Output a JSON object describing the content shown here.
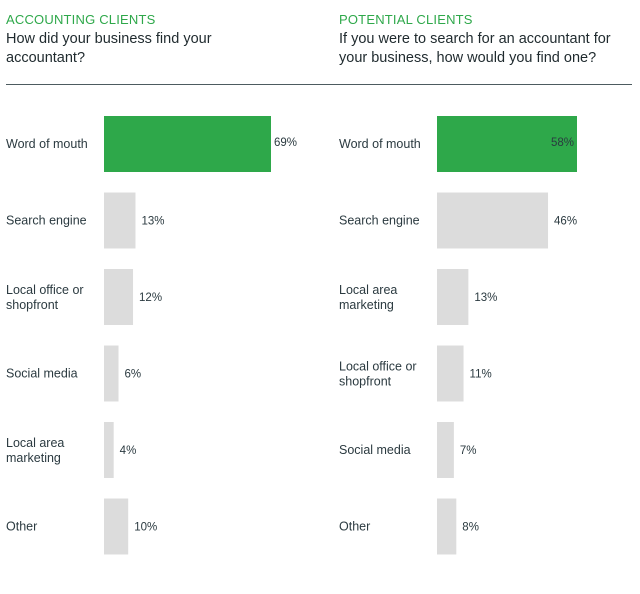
{
  "chart_data": [
    {
      "type": "bar",
      "orientation": "horizontal",
      "kicker": "ACCOUNTING CLIENTS",
      "title": "How did your business find your accountant?",
      "categories": [
        "Word of mouth",
        "Search engine",
        "Local office or shopfront",
        "Social media",
        "Local area marketing",
        "Other"
      ],
      "category_lines": [
        [
          "Word of mouth"
        ],
        [
          "Search engine"
        ],
        [
          "Local office or",
          "shopfront"
        ],
        [
          "Social media"
        ],
        [
          "Local area",
          "marketing"
        ],
        [
          "Other"
        ]
      ],
      "values": [
        69,
        13,
        12,
        6,
        4,
        10
      ],
      "value_labels": [
        "69%",
        "13%",
        "12%",
        "6%",
        "4%",
        "10%"
      ],
      "highlight_index": 0,
      "unit": "%"
    },
    {
      "type": "bar",
      "orientation": "horizontal",
      "kicker": "POTENTIAL CLIENTS",
      "title": "If you were to search for an accountant for your business, how would you find one?",
      "categories": [
        "Word of mouth",
        "Search engine",
        "Local area marketing",
        "Local office or shopfront",
        "Social media",
        "Other"
      ],
      "category_lines": [
        [
          "Word of mouth"
        ],
        [
          "Search engine"
        ],
        [
          "Local area",
          "marketing"
        ],
        [
          "Local office or",
          "shopfront"
        ],
        [
          "Social media"
        ],
        [
          "Other"
        ]
      ],
      "values": [
        58,
        46,
        13,
        11,
        7,
        8
      ],
      "value_labels": [
        "58%",
        "46%",
        "13%",
        "11%",
        "7%",
        "8%"
      ],
      "highlight_index": 0,
      "unit": "%"
    }
  ],
  "header": {
    "left": {
      "kicker": "ACCOUNTING CLIENTS",
      "question_line1": "How did your business find your",
      "question_line2": "accountant?"
    },
    "right": {
      "kicker": "POTENTIAL CLIENTS",
      "question_line1": "If you were to search for an accountant for",
      "question_line2": "your business, how would you find one?"
    }
  },
  "colors": {
    "highlight": "#2ea84a",
    "bar": "#dcdcdc",
    "kicker": "#2ea84a",
    "text": "#2b3a40"
  }
}
